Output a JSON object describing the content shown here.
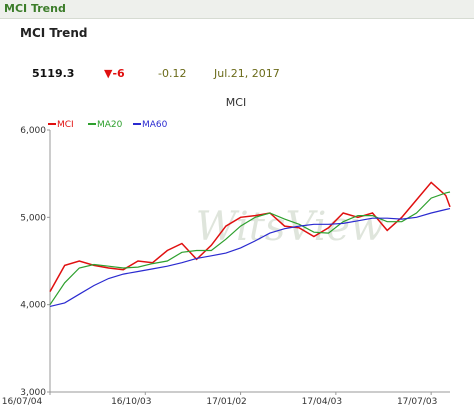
{
  "header": {
    "title": "MCI Trend"
  },
  "title": "MCI Trend",
  "stats": {
    "price": "5119.3",
    "change": "-6",
    "percent": "-0.12",
    "date": "Jul.21, 2017"
  },
  "chart_data": {
    "type": "line",
    "title": "MCI",
    "watermark": "WitsView",
    "x": [
      "16/07/04",
      "16/07/18",
      "16/08/01",
      "16/08/15",
      "16/08/29",
      "16/09/12",
      "16/09/26",
      "16/10/10",
      "16/10/24",
      "16/11/07",
      "16/11/21",
      "16/12/05",
      "16/12/19",
      "17/01/02",
      "17/01/16",
      "17/01/30",
      "17/02/13",
      "17/02/27",
      "17/03/13",
      "17/03/27",
      "17/04/10",
      "17/04/24",
      "17/05/08",
      "17/05/22",
      "17/06/05",
      "17/06/19",
      "17/07/03",
      "17/07/17",
      "17/07/21"
    ],
    "series": [
      {
        "name": "MCI",
        "color": "#e01010",
        "values": [
          4150,
          4450,
          4500,
          4450,
          4420,
          4400,
          4500,
          4480,
          4620,
          4700,
          4520,
          4680,
          4900,
          5000,
          5020,
          5050,
          4900,
          4880,
          4780,
          4880,
          5050,
          5000,
          5050,
          4850,
          5000,
          5200,
          5400,
          5250,
          5119.3
        ]
      },
      {
        "name": "MA20",
        "color": "#2ea02e",
        "values": [
          4000,
          4250,
          4420,
          4460,
          4440,
          4420,
          4430,
          4470,
          4500,
          4600,
          4620,
          4620,
          4750,
          4900,
          5000,
          5050,
          4980,
          4920,
          4830,
          4820,
          4950,
          5020,
          5020,
          4950,
          4950,
          5050,
          5220,
          5280,
          5290
        ]
      },
      {
        "name": "MA60",
        "color": "#2a2ad0",
        "values": [
          3980,
          4020,
          4120,
          4220,
          4300,
          4350,
          4380,
          4410,
          4440,
          4480,
          4530,
          4560,
          4590,
          4650,
          4730,
          4820,
          4870,
          4900,
          4920,
          4920,
          4930,
          4960,
          4990,
          4990,
          4980,
          5000,
          5050,
          5090,
          5100
        ]
      }
    ],
    "xlim": [
      "16/07/04",
      "17/07/21"
    ],
    "xticks": [
      "16/07/04",
      "16/10/03",
      "17/01/02",
      "17/04/03",
      "17/07/03"
    ],
    "ylim": [
      3000,
      6000
    ],
    "yticks": [
      {
        "value": 3000,
        "label": "3,000"
      },
      {
        "value": 4000,
        "label": "4,000"
      },
      {
        "value": 5000,
        "label": "5,000"
      },
      {
        "value": 6000,
        "label": "6,000"
      }
    ],
    "grid": false
  }
}
